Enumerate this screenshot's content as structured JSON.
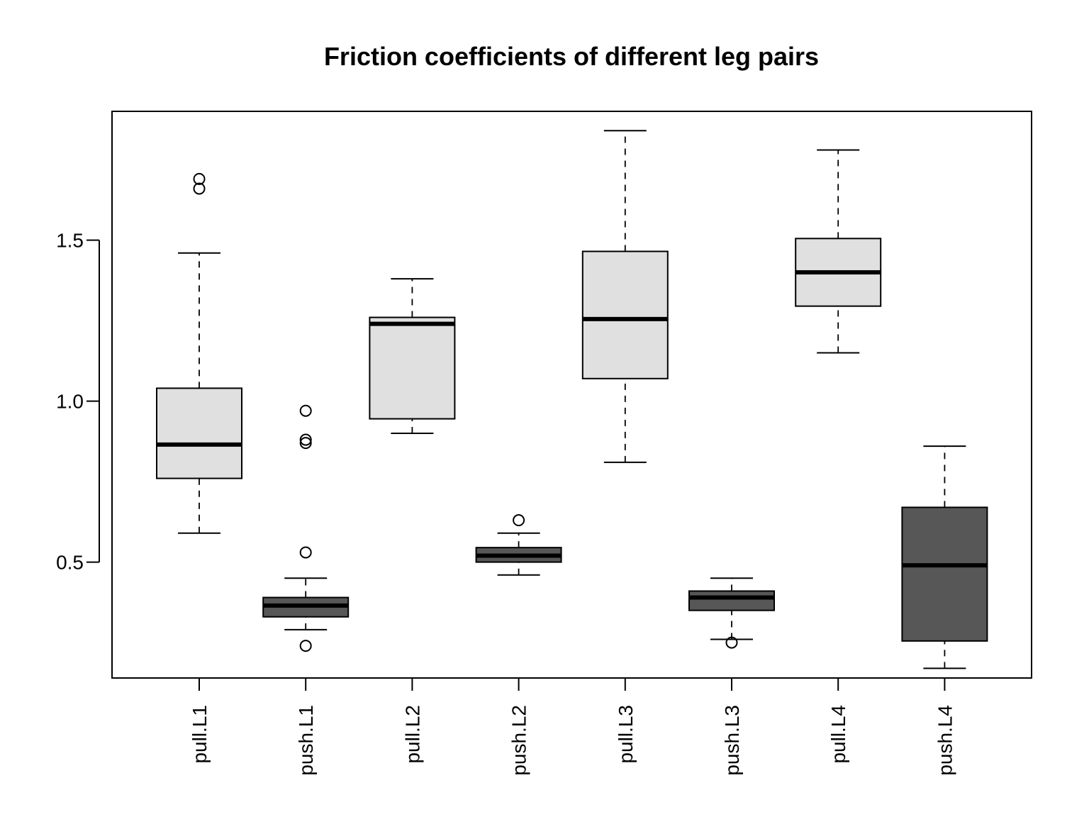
{
  "chart_data": {
    "type": "box",
    "title": "Friction coefficients of different leg pairs",
    "xlabel": "",
    "ylabel": "",
    "ylim": [
      0.14,
      1.9
    ],
    "yticks": [
      0.5,
      1.0,
      1.5
    ],
    "ytick_labels": [
      "0.5",
      "1.0",
      "1.5"
    ],
    "grid": false,
    "legend": "none",
    "colors": {
      "pull": "#e0e0e0",
      "push": "#575757",
      "line": "#000000"
    },
    "boxes": [
      {
        "label": "pull.L1",
        "group": "pull",
        "min": 0.59,
        "q1": 0.76,
        "median": 0.865,
        "q3": 1.04,
        "max": 1.46,
        "outliers": [
          1.66,
          1.69
        ]
      },
      {
        "label": "push.L1",
        "group": "push",
        "min": 0.29,
        "q1": 0.33,
        "median": 0.365,
        "q3": 0.39,
        "max": 0.45,
        "outliers": [
          0.24,
          0.53,
          0.87,
          0.88,
          0.97
        ]
      },
      {
        "label": "pull.L2",
        "group": "pull",
        "min": 0.9,
        "q1": 0.945,
        "median": 1.24,
        "q3": 1.26,
        "max": 1.38,
        "outliers": []
      },
      {
        "label": "push.L2",
        "group": "push",
        "min": 0.46,
        "q1": 0.5,
        "median": 0.52,
        "q3": 0.545,
        "max": 0.59,
        "outliers": [
          0.63
        ]
      },
      {
        "label": "pull.L3",
        "group": "pull",
        "min": 0.81,
        "q1": 1.07,
        "median": 1.255,
        "q3": 1.465,
        "max": 1.84,
        "outliers": []
      },
      {
        "label": "push.L3",
        "group": "push",
        "min": 0.26,
        "q1": 0.35,
        "median": 0.39,
        "q3": 0.41,
        "max": 0.45,
        "outliers": [
          0.25
        ]
      },
      {
        "label": "pull.L4",
        "group": "pull",
        "min": 1.15,
        "q1": 1.295,
        "median": 1.4,
        "q3": 1.505,
        "max": 1.78,
        "outliers": []
      },
      {
        "label": "push.L4",
        "group": "push",
        "min": 0.17,
        "q1": 0.255,
        "median": 0.49,
        "q3": 0.67,
        "max": 0.86,
        "outliers": []
      }
    ]
  }
}
